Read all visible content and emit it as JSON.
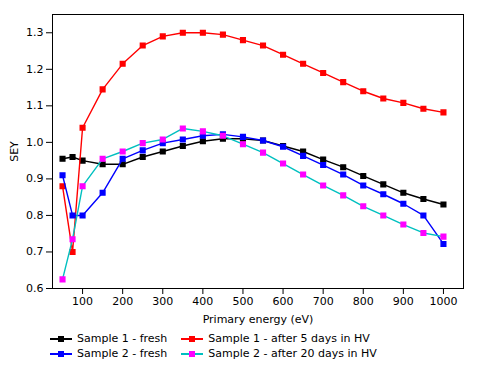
{
  "chart_data": {
    "type": "line",
    "xlabel": "Primary energy (eV)",
    "ylabel": "SEY",
    "x": [
      50,
      75,
      100,
      150,
      200,
      250,
      300,
      350,
      400,
      450,
      500,
      550,
      600,
      650,
      700,
      750,
      800,
      850,
      900,
      950,
      1000
    ],
    "series": [
      {
        "name": "Sample 1 - fresh",
        "color": "#000000",
        "marker": "square",
        "values": [
          0.955,
          0.96,
          0.95,
          0.94,
          0.94,
          0.96,
          0.975,
          0.99,
          1.003,
          1.01,
          1.01,
          1.005,
          0.99,
          0.975,
          0.953,
          0.932,
          0.908,
          0.885,
          0.862,
          0.845,
          0.83
        ]
      },
      {
        "name": "Sample 1 - after 5 days in HV",
        "color": "#ff0000",
        "marker": "square",
        "values": [
          0.88,
          0.7,
          1.04,
          1.145,
          1.215,
          1.265,
          1.29,
          1.3,
          1.3,
          1.295,
          1.28,
          1.265,
          1.24,
          1.215,
          1.19,
          1.165,
          1.14,
          1.12,
          1.108,
          1.092,
          1.082
        ]
      },
      {
        "name": "Sample 2 - fresh",
        "color": "#0000ff",
        "marker": "square",
        "values": [
          0.91,
          0.8,
          0.8,
          0.862,
          0.955,
          0.978,
          0.998,
          1.008,
          1.018,
          1.022,
          1.015,
          1.005,
          0.988,
          0.963,
          0.938,
          0.912,
          0.882,
          0.858,
          0.832,
          0.8,
          0.722
        ]
      },
      {
        "name": "Sample 2 - after 20 days in HV",
        "color": "#00c0c0",
        "marker": "square",
        "colors": [
          "#ff00ff",
          "#ff00ff",
          "#ff00ff",
          "#ff00ff",
          "#ff00ff",
          "#ff00ff",
          "#ff00ff",
          "#ff00ff",
          "#ff00ff",
          "#ff00ff",
          "#ff00ff",
          "#ff00ff",
          "#ff00ff",
          "#ff00ff",
          "#ff00ff",
          "#ff00ff",
          "#ff00ff",
          "#ff00ff",
          "#ff00ff",
          "#ff00ff",
          "#ff00ff"
        ],
        "values": [
          0.625,
          0.735,
          0.88,
          0.955,
          0.975,
          0.998,
          1.008,
          1.038,
          1.03,
          1.018,
          0.995,
          0.972,
          0.942,
          0.912,
          0.882,
          0.855,
          0.825,
          0.8,
          0.775,
          0.752,
          0.742
        ]
      }
    ],
    "xlim": [
      25,
      1050
    ],
    "ylim": [
      0.6,
      1.35
    ],
    "xticks": [
      100,
      200,
      300,
      400,
      500,
      600,
      700,
      800,
      900,
      1000
    ],
    "yticks": [
      0.6,
      0.7,
      0.8,
      0.9,
      {
        "value": 1,
        "label": "1.0"
      },
      1.1,
      1.2,
      1.3
    ],
    "grid": false,
    "legend": "lower left"
  }
}
